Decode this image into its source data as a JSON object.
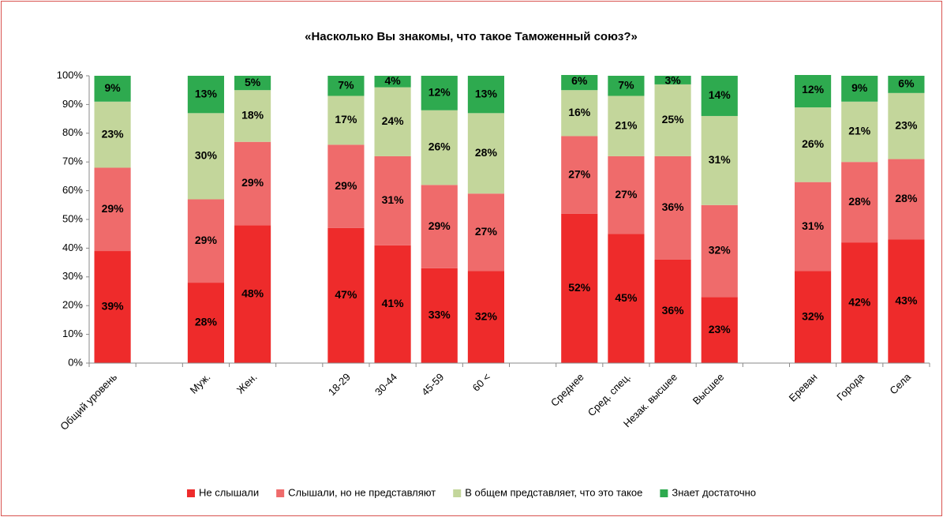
{
  "chart_data": {
    "type": "bar",
    "stacked": true,
    "title": "«Насколько Вы знакомы, что такое Таможенный союз?»",
    "categories": [
      "Общий уровень",
      null,
      "Муж.",
      "Жен.",
      null,
      "18-29",
      "30-44",
      "45-59",
      "60 <",
      null,
      "Среднее",
      "Сред. спец.",
      "Незак. высшее",
      "Высшее",
      null,
      "Ереван",
      "Города",
      "Села"
    ],
    "series": [
      {
        "name": "Не слышали",
        "color": "#ee2b2b",
        "label_color": "#ffffff",
        "values": [
          39,
          null,
          28,
          48,
          null,
          47,
          41,
          33,
          32,
          null,
          52,
          45,
          36,
          23,
          null,
          32,
          42,
          43
        ],
        "value_labels": [
          "39%",
          null,
          "28%",
          "48%",
          null,
          "47%",
          "41%",
          "33%",
          "32%",
          null,
          "52%",
          "45%",
          "36%",
          "23%",
          null,
          "32%",
          "42%",
          "43%"
        ]
      },
      {
        "name": "Слышали, но не представляют",
        "color": "#ef6b6b",
        "label_color": "#000000",
        "values": [
          29,
          null,
          29,
          29,
          null,
          29,
          31,
          29,
          27,
          null,
          27,
          27,
          36,
          32,
          null,
          31,
          28,
          28
        ],
        "value_labels": [
          "29%",
          null,
          "29%",
          "29%",
          null,
          "29%",
          "31%",
          "29%",
          "27%",
          null,
          "27%",
          "27%",
          "36%",
          "32%",
          null,
          "31%",
          "28%",
          "28%"
        ]
      },
      {
        "name": "В общем представляет, что это такое",
        "color": "#c3d69b",
        "label_color": "#000000",
        "values": [
          23,
          null,
          30,
          18,
          null,
          17,
          24,
          26,
          28,
          null,
          16,
          21,
          25,
          31,
          null,
          26,
          21,
          23
        ],
        "value_labels": [
          "23%",
          null,
          "30%",
          "18%",
          null,
          "17%",
          "24%",
          "26%",
          "28%",
          null,
          "16%",
          "21%",
          "25%",
          "31%",
          null,
          "26%",
          "21%",
          "23%"
        ]
      },
      {
        "name": "Знает достаточно",
        "color": "#2eaa4f",
        "label_color": "#ffffff",
        "values": [
          9,
          null,
          13,
          5,
          null,
          7,
          4,
          12,
          13,
          null,
          6,
          7,
          3,
          14,
          null,
          12,
          9,
          6
        ],
        "value_labels": [
          "9%",
          null,
          "13%",
          "5%",
          null,
          "7%",
          "4%",
          "12%",
          "13%",
          null,
          "6%",
          "7%",
          "3%",
          "14%",
          null,
          "12%",
          "9%",
          "6%"
        ]
      }
    ],
    "ylim": [
      0,
      100
    ],
    "yticks": [
      {
        "value": 0,
        "label": "0%"
      },
      {
        "value": 10,
        "label": "10%"
      },
      {
        "value": 20,
        "label": "20%"
      },
      {
        "value": 30,
        "label": "30%"
      },
      {
        "value": 40,
        "label": "40%"
      },
      {
        "value": 50,
        "label": "50%"
      },
      {
        "value": 60,
        "label": "60%"
      },
      {
        "value": 70,
        "label": "70%"
      },
      {
        "value": 80,
        "label": "80%"
      },
      {
        "value": 90,
        "label": "90%"
      },
      {
        "value": 100,
        "label": "100%"
      }
    ],
    "grid": false,
    "legend": "bottom"
  }
}
